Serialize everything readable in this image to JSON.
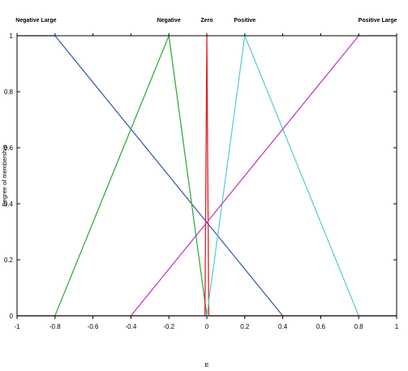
{
  "chart_data": {
    "type": "line",
    "xlabel": "E",
    "ylabel": "Degree of membership",
    "xlim": [
      -1,
      1
    ],
    "ylim": [
      0,
      1
    ],
    "grid": false,
    "x_ticks": [
      -1,
      -0.8,
      -0.6,
      -0.4,
      -0.2,
      0,
      0.2,
      0.4,
      0.6,
      0.8,
      1
    ],
    "x_tick_labels": [
      "-1",
      "-0.8",
      "-0.6",
      "-0.4",
      "-0.2",
      "0",
      "0.2",
      "0.4",
      "0.6",
      "0.8",
      "1"
    ],
    "y_ticks": [
      0,
      0.2,
      0.4,
      0.6,
      0.8,
      1
    ],
    "y_tick_labels": [
      "0",
      "0.2",
      "0.4",
      "0.6",
      "0.8",
      "1"
    ],
    "series": [
      {
        "name": "Negative Large",
        "color": "#3a5fb8",
        "points": [
          [
            -1,
            1
          ],
          [
            -0.8,
            1
          ],
          [
            0.4,
            0
          ]
        ]
      },
      {
        "name": "Negative",
        "color": "#3cab3c",
        "points": [
          [
            -1,
            0
          ],
          [
            -0.8,
            0
          ],
          [
            -0.2,
            1
          ],
          [
            0,
            0
          ],
          [
            1,
            0
          ]
        ]
      },
      {
        "name": "Zero",
        "color": "#e02020",
        "points": [
          [
            -1,
            0
          ],
          [
            -0.01,
            0
          ],
          [
            0,
            1
          ],
          [
            0.01,
            0
          ],
          [
            1,
            0
          ]
        ]
      },
      {
        "name": "Positive",
        "color": "#5ecfd6",
        "points": [
          [
            -1,
            0
          ],
          [
            0,
            0
          ],
          [
            0.2,
            1
          ],
          [
            0.8,
            0
          ],
          [
            1,
            0
          ]
        ]
      },
      {
        "name": "Positive Large",
        "color": "#c040c0",
        "points": [
          [
            -0.4,
            0
          ],
          [
            0.8,
            1
          ],
          [
            1,
            1
          ]
        ]
      }
    ],
    "label_x": {
      "Negative Large": -0.9,
      "Negative": -0.2,
      "Zero": 0,
      "Positive": 0.2,
      "Positive Large": 0.9
    }
  }
}
